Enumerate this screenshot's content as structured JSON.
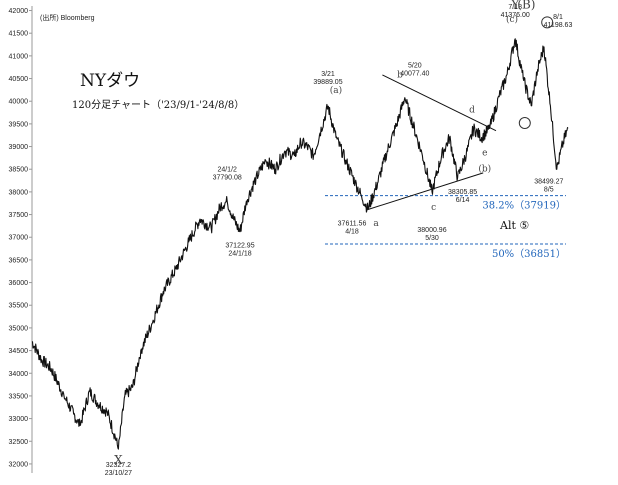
{
  "chart_data": {
    "type": "line",
    "title": "NYダウ",
    "subtitle": "120分足チャート（'23/9/1-'24/8/8）",
    "source": "(出所) Bloomberg",
    "y_ticks": [
      32000,
      32500,
      33000,
      33500,
      34000,
      34500,
      35000,
      35500,
      36000,
      36500,
      37000,
      37500,
      38000,
      38500,
      39000,
      39500,
      40000,
      40500,
      41000,
      41500,
      42000
    ],
    "ylim": [
      31800,
      42100
    ],
    "grid": false,
    "series_color": "#111111",
    "key_points": [
      {
        "t": 0,
        "y": 34700
      },
      {
        "t": 6,
        "y": 34300
      },
      {
        "t": 12,
        "y": 34100
      },
      {
        "t": 20,
        "y": 33500
      },
      {
        "t": 26,
        "y": 33100
      },
      {
        "t": 30,
        "y": 32850
      },
      {
        "t": 36,
        "y": 33600
      },
      {
        "t": 42,
        "y": 33300
      },
      {
        "t": 47,
        "y": 33150
      },
      {
        "t": 52,
        "y": 32600
      },
      {
        "t": 54,
        "y": 32327
      },
      {
        "t": 58,
        "y": 33500
      },
      {
        "t": 63,
        "y": 33700
      },
      {
        "t": 68,
        "y": 34500
      },
      {
        "t": 75,
        "y": 35100
      },
      {
        "t": 82,
        "y": 35800
      },
      {
        "t": 90,
        "y": 36300
      },
      {
        "t": 98,
        "y": 36900
      },
      {
        "t": 105,
        "y": 37400
      },
      {
        "t": 112,
        "y": 37200
      },
      {
        "t": 118,
        "y": 37700
      },
      {
        "t": 122,
        "y": 37790
      },
      {
        "t": 126,
        "y": 37400
      },
      {
        "t": 130,
        "y": 37123
      },
      {
        "t": 134,
        "y": 37800
      },
      {
        "t": 140,
        "y": 38300
      },
      {
        "t": 146,
        "y": 38700
      },
      {
        "t": 152,
        "y": 38500
      },
      {
        "t": 158,
        "y": 38900
      },
      {
        "t": 164,
        "y": 38800
      },
      {
        "t": 168,
        "y": 39100
      },
      {
        "t": 172,
        "y": 39000
      },
      {
        "t": 176,
        "y": 38800
      },
      {
        "t": 180,
        "y": 39300
      },
      {
        "t": 185,
        "y": 39890
      },
      {
        "t": 190,
        "y": 39200
      },
      {
        "t": 196,
        "y": 38700
      },
      {
        "t": 202,
        "y": 38200
      },
      {
        "t": 206,
        "y": 37900
      },
      {
        "t": 210,
        "y": 37612
      },
      {
        "t": 216,
        "y": 38200
      },
      {
        "t": 222,
        "y": 38900
      },
      {
        "t": 228,
        "y": 39500
      },
      {
        "t": 233,
        "y": 40077
      },
      {
        "t": 238,
        "y": 39500
      },
      {
        "t": 244,
        "y": 38800
      },
      {
        "t": 250,
        "y": 38001
      },
      {
        "t": 256,
        "y": 38800
      },
      {
        "t": 261,
        "y": 39200
      },
      {
        "t": 266,
        "y": 38306
      },
      {
        "t": 272,
        "y": 38900
      },
      {
        "t": 276,
        "y": 39400
      },
      {
        "t": 281,
        "y": 39200
      },
      {
        "t": 286,
        "y": 39400
      },
      {
        "t": 292,
        "y": 40100
      },
      {
        "t": 297,
        "y": 40600
      },
      {
        "t": 302,
        "y": 41376
      },
      {
        "t": 307,
        "y": 40500
      },
      {
        "t": 312,
        "y": 39900
      },
      {
        "t": 316,
        "y": 40700
      },
      {
        "t": 320,
        "y": 41199
      },
      {
        "t": 324,
        "y": 39900
      },
      {
        "t": 328,
        "y": 38499
      },
      {
        "t": 332,
        "y": 39100
      },
      {
        "t": 335,
        "y": 39400
      }
    ],
    "price_labels": [
      {
        "lines": [
          "32327.2",
          "23/10/27"
        ],
        "t": 54,
        "y": 32327
      },
      {
        "lines": [
          "24/1/2",
          "37790.08"
        ],
        "t": 122,
        "y": 37790
      },
      {
        "lines": [
          "37122.95",
          "24/1/18"
        ],
        "t": 130,
        "y": 37123
      },
      {
        "lines": [
          "3/21",
          "39889.05"
        ],
        "t": 185,
        "y": 39890
      },
      {
        "lines": [
          "37611.56",
          "4/18"
        ],
        "t": 210,
        "y": 37612
      },
      {
        "lines": [
          "5/20",
          "40077.40"
        ],
        "t": 233,
        "y": 40077
      },
      {
        "lines": [
          "38000.96",
          "5/30"
        ],
        "t": 250,
        "y": 38001
      },
      {
        "lines": [
          "38305.85",
          "6/14"
        ],
        "t": 266,
        "y": 38306
      },
      {
        "lines": [
          "7/18",
          "41376.00"
        ],
        "t": 302,
        "y": 41376
      },
      {
        "lines": [
          "8/1",
          "41198.63"
        ],
        "t": 320,
        "y": 41199
      },
      {
        "lines": [
          "38499.27",
          "8/5"
        ],
        "t": 328,
        "y": 38499
      }
    ],
    "wave_labels": [
      {
        "text": "X",
        "t": 54,
        "y": 32000
      },
      {
        "text": "(a)",
        "t": 190,
        "y": 40180
      },
      {
        "text": "a",
        "t": 215,
        "y": 37250
      },
      {
        "text": "b",
        "t": 230,
        "y": 40520
      },
      {
        "text": "c",
        "t": 251,
        "y": 37600
      },
      {
        "text": "d",
        "t": 275,
        "y": 39750
      },
      {
        "text": "e",
        "t": 283,
        "y": 38800
      },
      {
        "text": "(b)",
        "t": 283,
        "y": 38450
      },
      {
        "text": "(c)",
        "t": 300,
        "y": 41750
      },
      {
        "text": "Y",
        "t": 302,
        "y": 42050
      },
      {
        "text": "(B)",
        "t": 309,
        "y": 42050
      }
    ],
    "circle_marks": [
      {
        "t": 322,
        "y": 41740
      },
      {
        "t": 308,
        "y": 39520
      }
    ],
    "trendlines": [
      {
        "t1": 210,
        "y1": 37612,
        "t2": 282,
        "y2": 38420
      },
      {
        "t1": 219,
        "y1": 40580,
        "t2": 290,
        "y2": 39350
      }
    ],
    "fib_levels": [
      {
        "label": "38.2%（37919）",
        "value": 37919,
        "color": "#2266bb"
      },
      {
        "label": "50%（36851）",
        "value": 36851,
        "color": "#2266bb"
      }
    ],
    "alt_label": "Alt ⑤",
    "alt_point": {
      "t": 265,
      "y": 37450
    }
  }
}
